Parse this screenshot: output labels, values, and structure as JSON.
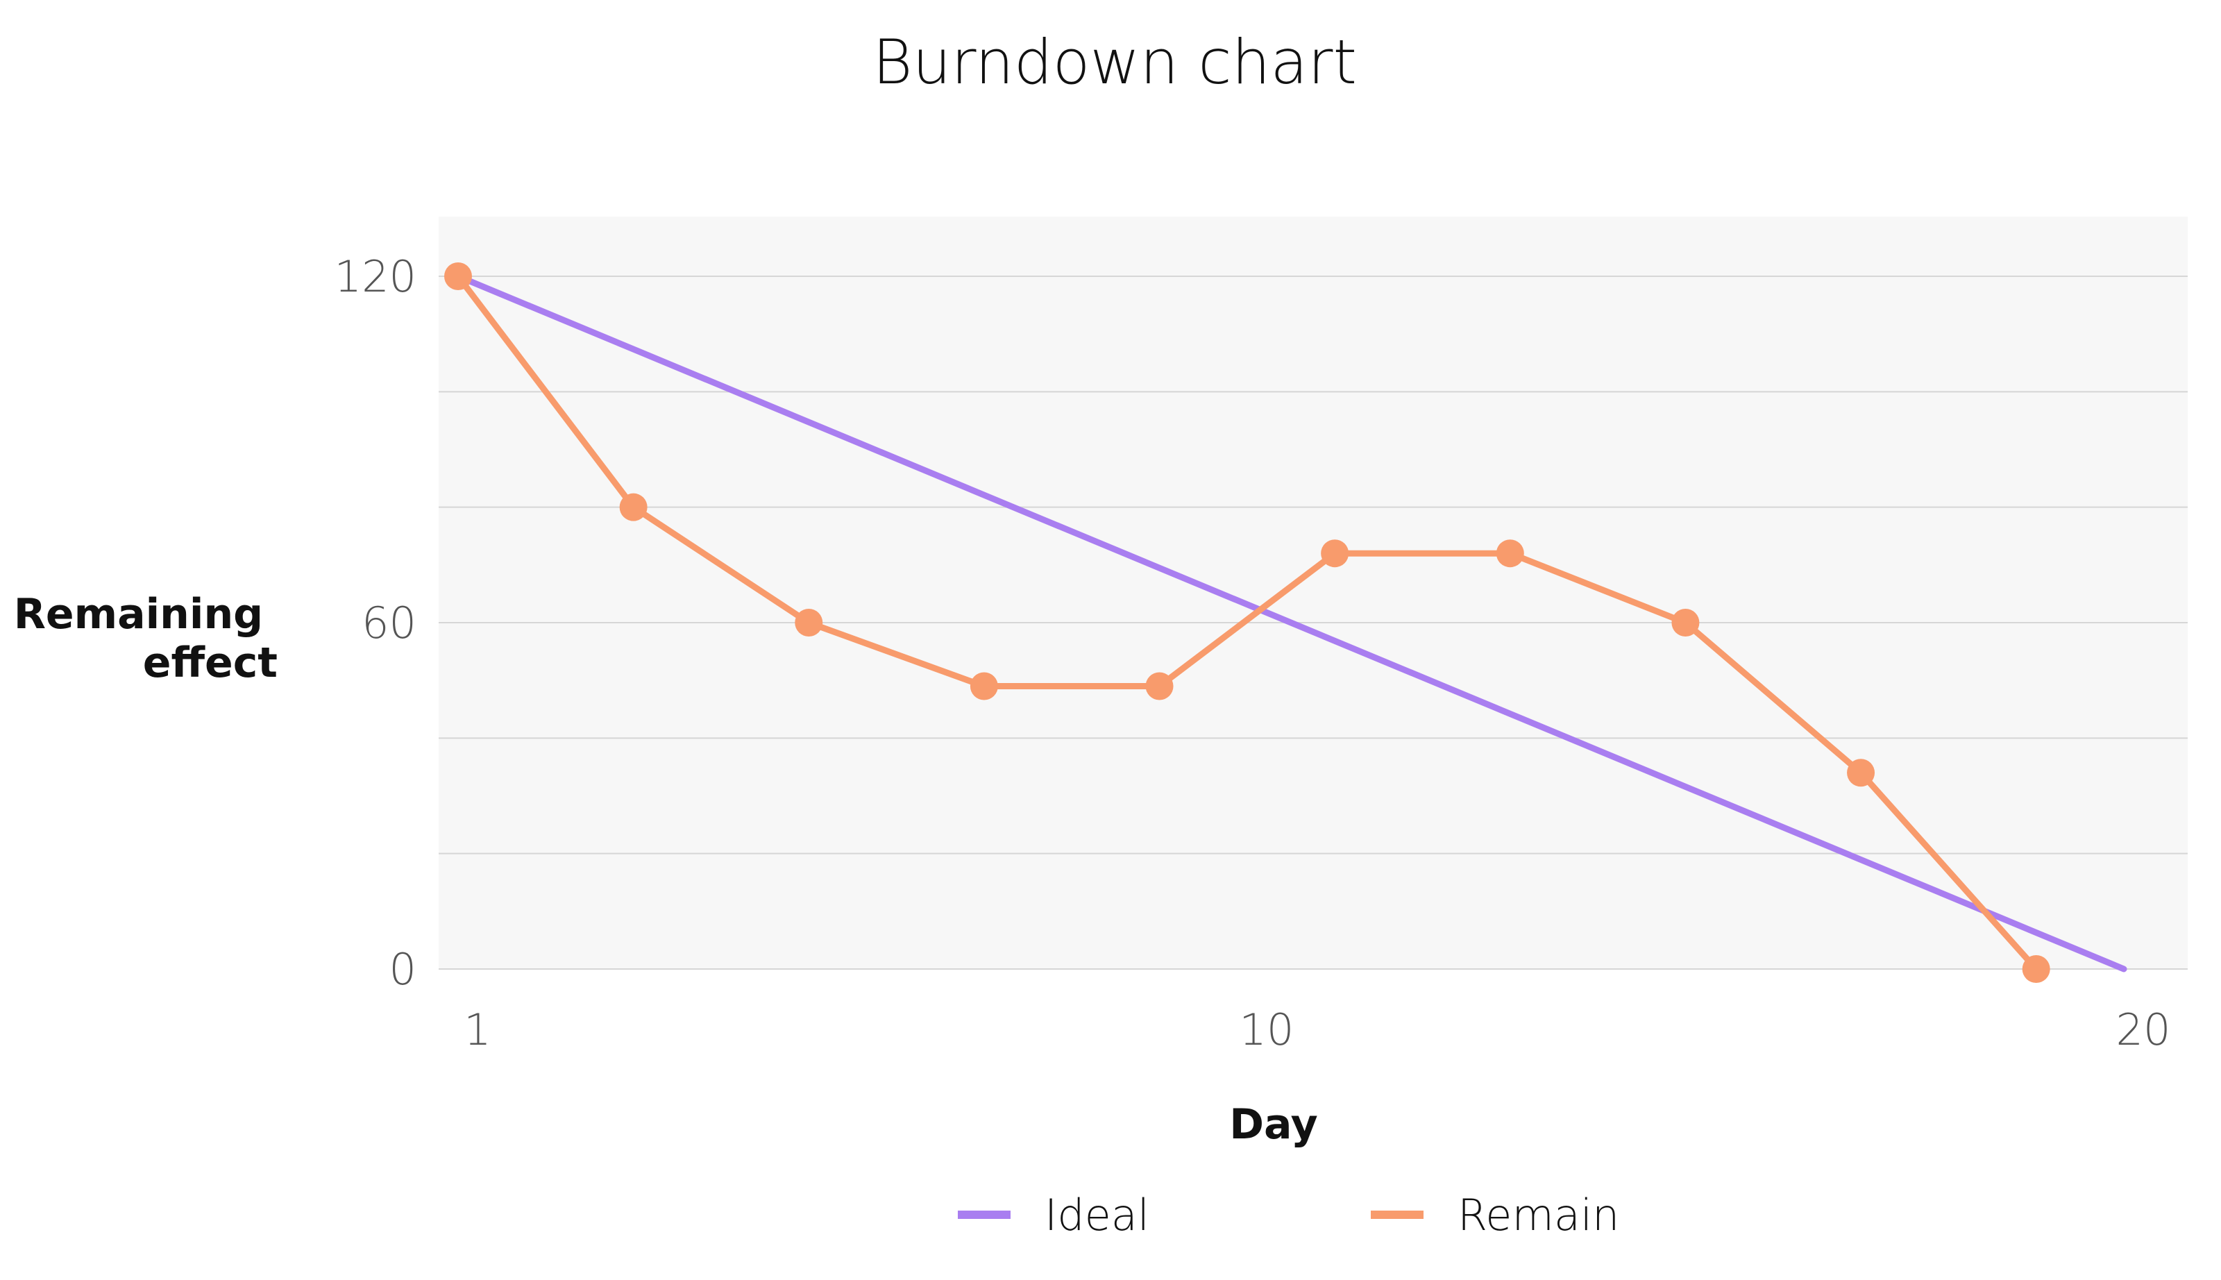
{
  "chart_data": {
    "type": "line",
    "title": "Burndown chart",
    "xlabel": "Day",
    "ylabel": "Remaining effect",
    "xlim": [
      1,
      20
    ],
    "ylim": [
      0,
      120
    ],
    "yticks": [
      "0",
      "60",
      "120"
    ],
    "xticks": [
      "1",
      "10",
      "20"
    ],
    "grid": true,
    "legend_position": "bottom",
    "series": [
      {
        "name": "Ideal",
        "color": "#a97ef0",
        "markers": false,
        "x": [
          1,
          20
        ],
        "y": [
          120,
          0
        ]
      },
      {
        "name": "Remain",
        "color": "#f89b6c",
        "markers": true,
        "x": [
          1,
          3,
          5,
          7,
          9,
          11,
          13,
          15,
          17,
          19
        ],
        "y": [
          120,
          80,
          60,
          49,
          49,
          72,
          72,
          60,
          34,
          0
        ]
      }
    ]
  }
}
